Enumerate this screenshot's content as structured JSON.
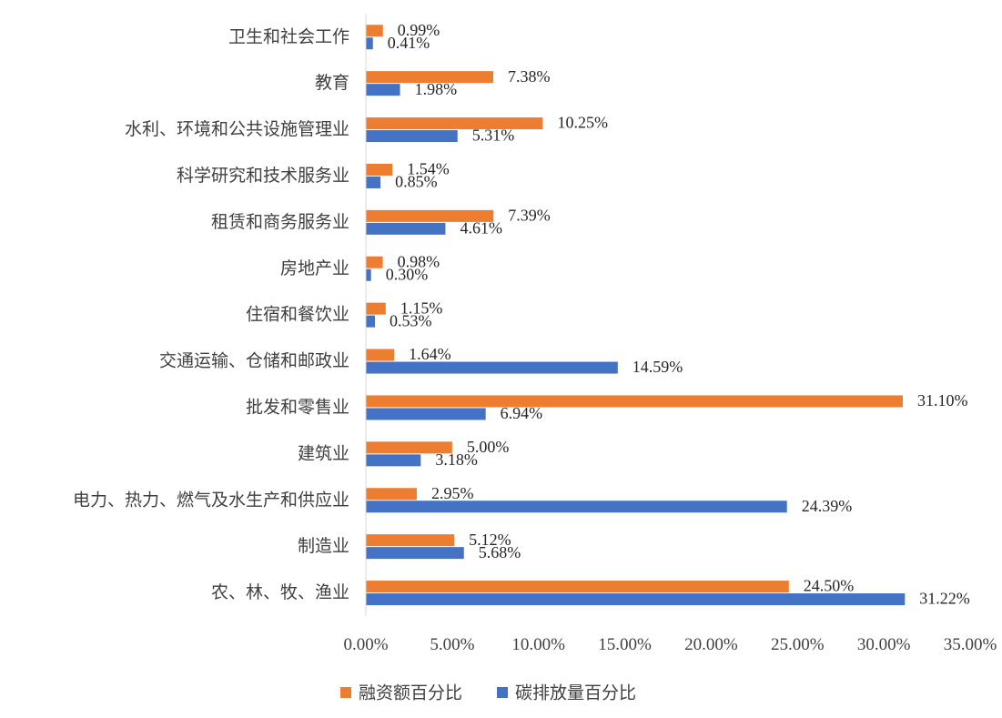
{
  "chart_data": {
    "type": "bar",
    "orientation": "horizontal",
    "categories": [
      "农、林、牧、渔业",
      "制造业",
      "电力、热力、燃气及水生产和供应业",
      "建筑业",
      "批发和零售业",
      "交通运输、仓储和邮政业",
      "住宿和餐饮业",
      "房地产业",
      "租赁和商务服务业",
      "科学研究和技术服务业",
      "水利、环境和公共设施管理业",
      "教育",
      "卫生和社会工作"
    ],
    "series": [
      {
        "name": "融资额百分比",
        "color": "#ED7D31",
        "values": [
          24.5,
          5.12,
          2.95,
          5.0,
          31.1,
          1.64,
          1.15,
          0.98,
          7.39,
          1.54,
          10.25,
          7.38,
          0.99
        ],
        "labels": [
          "24.50%",
          "5.12%",
          "2.95%",
          "5.00%",
          "31.10%",
          "1.64%",
          "1.15%",
          "0.98%",
          "7.39%",
          "1.54%",
          "10.25%",
          "7.38%",
          "0.99%"
        ]
      },
      {
        "name": "碳排放量百分比",
        "color": "#4472C4",
        "values": [
          31.22,
          5.68,
          24.39,
          3.18,
          6.94,
          14.59,
          0.53,
          0.3,
          4.61,
          0.85,
          5.31,
          1.98,
          0.41
        ],
        "labels": [
          "31.22%",
          "5.68%",
          "24.39%",
          "3.18%",
          "6.94%",
          "14.59%",
          "0.53%",
          "0.30%",
          "4.61%",
          "0.85%",
          "5.31%",
          "1.98%",
          "0.41%"
        ]
      }
    ],
    "xlim": [
      0,
      35
    ],
    "xticks": [
      "0.00%",
      "5.00%",
      "10.00%",
      "15.00%",
      "20.00%",
      "25.00%",
      "30.00%",
      "35.00%"
    ],
    "grid": false,
    "legend_position": "bottom"
  }
}
